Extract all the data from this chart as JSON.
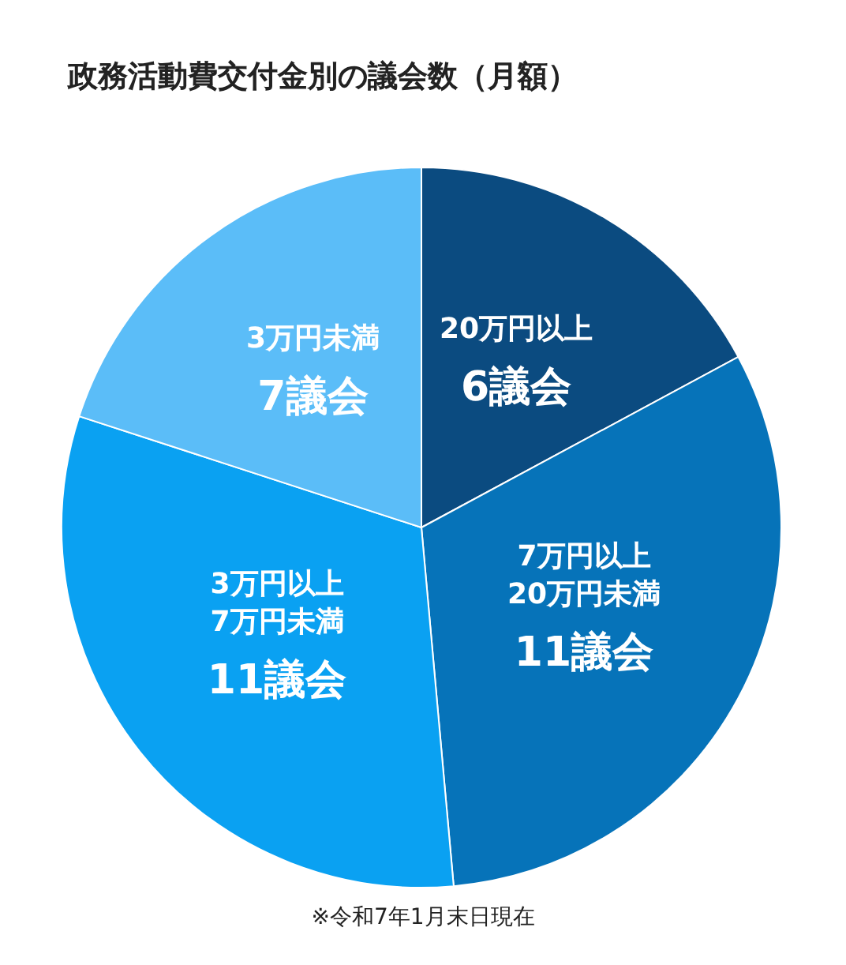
{
  "chart_data": {
    "type": "pie",
    "title": "政務活動費交付金別の議会数（月額）",
    "categories": [
      "20万円以上",
      "7万円以上\n20万円未満",
      "3万円以上\n7万円未満",
      "3万円未満"
    ],
    "values": [
      6,
      11,
      11,
      7
    ],
    "colors": [
      "#0b4b80",
      "#0673b9",
      "#0aa1f2",
      "#5bbdf8"
    ],
    "value_labels": [
      "6議会",
      "11議会",
      "11議会",
      "7議会"
    ],
    "annotations": [
      "※令和7年1月末日現在"
    ]
  }
}
